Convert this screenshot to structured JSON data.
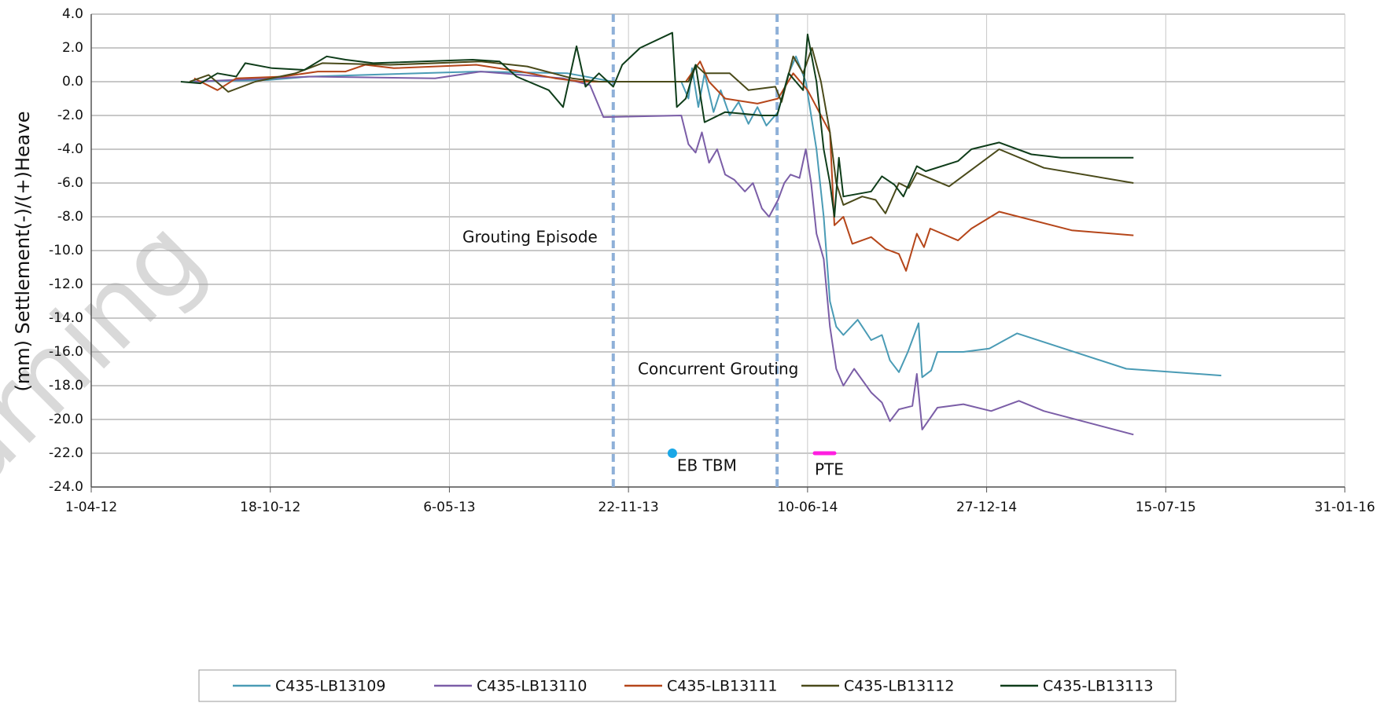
{
  "chart_data": {
    "type": "line",
    "y_label": "(mm) Settlement(-)/(+)Heave",
    "watermark": "Learning",
    "xlim": [
      "2012-04-01",
      "2016-01-31"
    ],
    "xticks": [
      {
        "value": "2012-04-01",
        "label": "1-04-12"
      },
      {
        "value": "2012-10-18",
        "label": "18-10-12"
      },
      {
        "value": "2013-05-06",
        "label": "6-05-13"
      },
      {
        "value": "2013-11-22",
        "label": "22-11-13"
      },
      {
        "value": "2014-06-10",
        "label": "10-06-14"
      },
      {
        "value": "2014-12-27",
        "label": "27-12-14"
      },
      {
        "value": "2015-07-15",
        "label": "15-07-15"
      },
      {
        "value": "2016-01-31",
        "label": "31-01-16"
      }
    ],
    "ylim": [
      -24,
      4
    ],
    "yticks": [
      {
        "value": 4,
        "label": "4.0"
      },
      {
        "value": 2,
        "label": "2.0"
      },
      {
        "value": 0,
        "label": "0.0"
      },
      {
        "value": -2,
        "label": "-2.0"
      },
      {
        "value": -4,
        "label": "-4.0"
      },
      {
        "value": -6,
        "label": "-6.0"
      },
      {
        "value": -8,
        "label": "-8.0"
      },
      {
        "value": -10,
        "label": "-10.0"
      },
      {
        "value": -12,
        "label": "-12.0"
      },
      {
        "value": -14,
        "label": "-14.0"
      },
      {
        "value": -16,
        "label": "-16.0"
      },
      {
        "value": -18,
        "label": "-18.0"
      },
      {
        "value": -20,
        "label": "-20.0"
      },
      {
        "value": -22,
        "label": "-22.0"
      },
      {
        "value": -24,
        "label": "-24.0"
      }
    ],
    "grid": true,
    "legend": "bottom",
    "vlines": {
      "color": "#8eb0d8",
      "x": [
        "2013-11-05",
        "2014-05-07"
      ]
    },
    "annotations": [
      {
        "text": "Grouting Episode"
      },
      {
        "text": "Concurrent Grouting"
      },
      {
        "text": "EB TBM",
        "x": "2014-01-10",
        "y": -22,
        "color": "#1aa7e6"
      },
      {
        "text": "PTE",
        "x": "2014-06-18",
        "x2": "2014-07-10",
        "y": -22,
        "color": "#ff1ee0"
      }
    ],
    "series": [
      {
        "name": "C435-LB13109",
        "color": "#4a9bb5",
        "x": [
          "2012-07-20",
          "2012-10-15",
          "2012-12-01",
          "2013-06-05",
          "2013-09-15",
          "2013-11-05",
          "2014-01-20",
          "2014-01-28",
          "2014-02-01",
          "2014-02-08",
          "2014-02-15",
          "2014-02-25",
          "2014-03-05",
          "2014-03-15",
          "2014-03-25",
          "2014-04-05",
          "2014-04-15",
          "2014-04-25",
          "2014-05-08",
          "2014-05-20",
          "2014-05-28",
          "2014-06-08",
          "2014-06-20",
          "2014-06-28",
          "2014-07-05",
          "2014-07-12",
          "2014-07-20",
          "2014-08-05",
          "2014-08-20",
          "2014-09-01",
          "2014-09-10",
          "2014-09-20",
          "2014-09-30",
          "2014-10-12",
          "2014-10-16",
          "2014-10-26",
          "2014-11-02",
          "2014-12-01",
          "2014-12-30",
          "2015-01-30",
          "2015-06-01",
          "2015-09-15"
        ],
        "values": [
          0.0,
          0.1,
          0.3,
          0.6,
          0.5,
          0.0,
          0.0,
          -1.0,
          0.8,
          -1.5,
          0.5,
          -1.8,
          -0.5,
          -2.0,
          -1.2,
          -2.5,
          -1.5,
          -2.6,
          -1.8,
          0.5,
          1.5,
          0.0,
          -4.0,
          -8.0,
          -13.0,
          -14.5,
          -15.0,
          -14.1,
          -15.3,
          -15.0,
          -16.5,
          -17.2,
          -16.0,
          -14.3,
          -17.5,
          -17.1,
          -16.0,
          -16.0,
          -15.8,
          -14.9,
          -17.0,
          -17.4
        ]
      },
      {
        "name": "C435-LB13110",
        "color": "#7b5ea7",
        "x": [
          "2012-07-25",
          "2012-12-01",
          "2013-04-20",
          "2013-06-10",
          "2013-09-10",
          "2013-10-10",
          "2013-10-25",
          "2014-01-20",
          "2014-01-28",
          "2014-02-05",
          "2014-02-12",
          "2014-02-20",
          "2014-03-01",
          "2014-03-10",
          "2014-03-20",
          "2014-04-01",
          "2014-04-10",
          "2014-04-20",
          "2014-04-28",
          "2014-05-08",
          "2014-05-15",
          "2014-05-22",
          "2014-06-01",
          "2014-06-08",
          "2014-06-14",
          "2014-06-20",
          "2014-06-28",
          "2014-07-05",
          "2014-07-12",
          "2014-07-20",
          "2014-08-01",
          "2014-08-20",
          "2014-09-01",
          "2014-09-10",
          "2014-09-20",
          "2014-10-05",
          "2014-10-10",
          "2014-10-16",
          "2014-11-02",
          "2014-12-01",
          "2015-01-01",
          "2015-02-01",
          "2015-03-01",
          "2015-06-09"
        ],
        "values": [
          0.0,
          0.3,
          0.2,
          0.6,
          0.2,
          -0.2,
          -2.1,
          -2.0,
          -3.7,
          -4.2,
          -3.0,
          -4.8,
          -4.0,
          -5.5,
          -5.8,
          -6.5,
          -6.0,
          -7.5,
          -8.0,
          -7.0,
          -6.0,
          -5.5,
          -5.7,
          -4.0,
          -6.0,
          -9.0,
          -10.5,
          -14.5,
          -17.0,
          -18.0,
          -17.0,
          -18.4,
          -19.0,
          -20.1,
          -19.4,
          -19.2,
          -17.3,
          -20.6,
          -19.3,
          -19.1,
          -19.5,
          -18.9,
          -19.5,
          -20.9
        ]
      },
      {
        "name": "C435-LB13111",
        "color": "#b5461a",
        "x": [
          "2012-07-25",
          "2012-08-20",
          "2012-09-10",
          "2012-11-01",
          "2012-12-10",
          "2013-01-10",
          "2013-02-01",
          "2013-03-05",
          "2013-06-05",
          "2013-07-25",
          "2013-09-01",
          "2013-10-01",
          "2014-01-25",
          "2014-02-10",
          "2014-02-20",
          "2014-03-10",
          "2014-04-15",
          "2014-05-08",
          "2014-05-25",
          "2014-06-10",
          "2014-06-25",
          "2014-07-05",
          "2014-07-10",
          "2014-07-20",
          "2014-07-30",
          "2014-08-20",
          "2014-09-05",
          "2014-09-20",
          "2014-09-28",
          "2014-10-10",
          "2014-10-18",
          "2014-10-25",
          "2014-11-25",
          "2014-12-10",
          "2015-01-10",
          "2015-04-01",
          "2015-06-09"
        ],
        "values": [
          0.2,
          -0.5,
          0.2,
          0.3,
          0.6,
          0.6,
          1.0,
          0.8,
          1.0,
          0.6,
          0.2,
          0.0,
          0.0,
          1.2,
          0.0,
          -1.0,
          -1.3,
          -1.0,
          0.5,
          -0.5,
          -2.0,
          -3.0,
          -8.5,
          -8.0,
          -9.6,
          -9.2,
          -9.9,
          -10.2,
          -11.2,
          -9.0,
          -9.8,
          -8.7,
          -9.4,
          -8.7,
          -7.7,
          -8.8,
          -9.1
        ]
      },
      {
        "name": "C435-LB13112",
        "color": "#4a4a1a",
        "x": [
          "2012-07-20",
          "2012-08-10",
          "2012-09-01",
          "2012-10-01",
          "2012-11-15",
          "2012-12-15",
          "2013-03-01",
          "2013-06-10",
          "2013-08-01",
          "2013-09-20",
          "2013-10-20",
          "2014-01-28",
          "2014-02-05",
          "2014-02-15",
          "2014-03-15",
          "2014-04-05",
          "2014-05-05",
          "2014-05-12",
          "2014-05-25",
          "2014-06-05",
          "2014-06-15",
          "2014-06-25",
          "2014-07-05",
          "2014-07-12",
          "2014-07-20",
          "2014-08-10",
          "2014-08-25",
          "2014-09-05",
          "2014-09-20",
          "2014-10-01",
          "2014-10-10",
          "2014-11-15",
          "2015-01-10",
          "2015-03-01",
          "2015-06-09"
        ],
        "values": [
          0.0,
          0.4,
          -0.6,
          0.0,
          0.5,
          1.1,
          1.0,
          1.2,
          0.9,
          0.2,
          0.0,
          0.0,
          1.0,
          0.5,
          0.5,
          -0.5,
          -0.3,
          -1.2,
          1.5,
          0.5,
          2.0,
          0.0,
          -3.0,
          -6.0,
          -7.3,
          -6.8,
          -7.0,
          -7.8,
          -6.0,
          -6.3,
          -5.4,
          -6.2,
          -4.0,
          -5.1,
          -6.0
        ]
      },
      {
        "name": "C435-LB13113",
        "color": "#0f3d1a",
        "x": [
          "2012-07-10",
          "2012-08-01",
          "2012-08-20",
          "2012-09-10",
          "2012-09-20",
          "2012-10-20",
          "2012-11-25",
          "2012-12-20",
          "2013-01-10",
          "2013-02-10",
          "2013-06-01",
          "2013-07-01",
          "2013-07-20",
          "2013-08-25",
          "2013-09-10",
          "2013-09-25",
          "2013-10-05",
          "2013-10-20",
          "2013-11-05",
          "2013-11-15",
          "2013-12-05",
          "2014-01-10",
          "2014-01-15",
          "2014-01-25",
          "2014-02-05",
          "2014-02-15",
          "2014-03-10",
          "2014-04-20",
          "2014-05-07",
          "2014-05-20",
          "2014-06-05",
          "2014-06-10",
          "2014-06-20",
          "2014-06-28",
          "2014-07-05",
          "2014-07-10",
          "2014-07-15",
          "2014-07-20",
          "2014-08-20",
          "2014-09-01",
          "2014-09-15",
          "2014-09-25",
          "2014-10-10",
          "2014-10-20",
          "2014-11-25",
          "2014-12-10",
          "2015-01-10",
          "2015-02-15",
          "2015-03-20",
          "2015-06-09"
        ],
        "values": [
          0.0,
          -0.1,
          0.5,
          0.3,
          1.1,
          0.8,
          0.7,
          1.5,
          1.3,
          1.1,
          1.3,
          1.2,
          0.3,
          -0.5,
          -1.5,
          2.1,
          -0.3,
          0.5,
          -0.3,
          1.0,
          2.0,
          2.9,
          -1.5,
          -1.0,
          1.0,
          -2.4,
          -1.8,
          -2.0,
          -2.0,
          0.5,
          -0.5,
          2.8,
          0.0,
          -4.0,
          -6.0,
          -8.0,
          -4.5,
          -6.8,
          -6.5,
          -5.6,
          -6.1,
          -6.8,
          -5.0,
          -5.3,
          -4.7,
          -4.0,
          -3.6,
          -4.3,
          -4.5,
          -4.5
        ]
      }
    ]
  }
}
